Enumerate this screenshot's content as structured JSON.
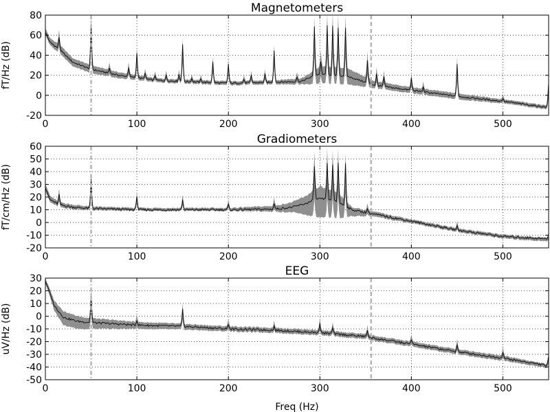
{
  "chart_data": [
    {
      "type": "line",
      "title": "Magnetometers",
      "ylabel": "fT/Hz (dB)",
      "xlabel": "",
      "xlim": [
        0,
        550
      ],
      "ylim": [
        -20,
        80
      ],
      "xticks": [
        0,
        100,
        200,
        300,
        400,
        500
      ],
      "yticks": [
        -20,
        0,
        20,
        40,
        60,
        80
      ],
      "grid": true,
      "vlines": [
        {
          "x": 50,
          "style": "dashdot"
        },
        {
          "x": 356,
          "style": "dashed"
        }
      ],
      "baseline": [
        [
          0,
          63
        ],
        [
          5,
          53
        ],
        [
          15,
          46
        ],
        [
          30,
          33
        ],
        [
          50,
          26
        ],
        [
          80,
          20
        ],
        [
          120,
          15
        ],
        [
          200,
          12
        ],
        [
          250,
          13
        ],
        [
          280,
          14
        ],
        [
          295,
          20
        ],
        [
          300,
          21
        ],
        [
          330,
          19
        ],
        [
          360,
          10
        ],
        [
          400,
          5
        ],
        [
          450,
          -1
        ],
        [
          500,
          -6
        ],
        [
          540,
          -11
        ],
        [
          550,
          -12
        ]
      ],
      "upper": [
        [
          0,
          67
        ],
        [
          5,
          57
        ],
        [
          15,
          51
        ],
        [
          30,
          37
        ],
        [
          50,
          30
        ],
        [
          80,
          23
        ],
        [
          120,
          17
        ],
        [
          200,
          14
        ],
        [
          250,
          15
        ],
        [
          280,
          17
        ],
        [
          295,
          25
        ],
        [
          300,
          29
        ],
        [
          330,
          27
        ],
        [
          360,
          14
        ],
        [
          400,
          8
        ],
        [
          450,
          2
        ],
        [
          500,
          -4
        ],
        [
          540,
          -9
        ],
        [
          550,
          -10
        ]
      ],
      "lower": [
        [
          0,
          60
        ],
        [
          5,
          50
        ],
        [
          15,
          42
        ],
        [
          30,
          29
        ],
        [
          50,
          22
        ],
        [
          80,
          17
        ],
        [
          120,
          13
        ],
        [
          200,
          10
        ],
        [
          250,
          11
        ],
        [
          280,
          11
        ],
        [
          295,
          11
        ],
        [
          300,
          12
        ],
        [
          330,
          11
        ],
        [
          360,
          7
        ],
        [
          400,
          2
        ],
        [
          450,
          -4
        ],
        [
          500,
          -8
        ],
        [
          540,
          -13
        ],
        [
          550,
          -14
        ]
      ],
      "peaks": [
        {
          "x": 15,
          "y": 58
        },
        {
          "x": 50,
          "y": 70
        },
        {
          "x": 70,
          "y": 27
        },
        {
          "x": 91,
          "y": 28
        },
        {
          "x": 100,
          "y": 42
        },
        {
          "x": 109,
          "y": 22
        },
        {
          "x": 120,
          "y": 20
        },
        {
          "x": 132,
          "y": 20
        },
        {
          "x": 146,
          "y": 21
        },
        {
          "x": 150,
          "y": 51
        },
        {
          "x": 160,
          "y": 17
        },
        {
          "x": 170,
          "y": 16
        },
        {
          "x": 183,
          "y": 33
        },
        {
          "x": 200,
          "y": 31
        },
        {
          "x": 217,
          "y": 16
        },
        {
          "x": 225,
          "y": 20
        },
        {
          "x": 240,
          "y": 21
        },
        {
          "x": 250,
          "y": 45
        },
        {
          "x": 275,
          "y": 18
        },
        {
          "x": 294,
          "y": 69
        },
        {
          "x": 301,
          "y": 33
        },
        {
          "x": 308,
          "y": 69
        },
        {
          "x": 314,
          "y": 69
        },
        {
          "x": 320,
          "y": 68
        },
        {
          "x": 328,
          "y": 67
        },
        {
          "x": 352,
          "y": 35
        },
        {
          "x": 362,
          "y": 21
        },
        {
          "x": 370,
          "y": 18
        },
        {
          "x": 400,
          "y": 17
        },
        {
          "x": 413,
          "y": 8
        },
        {
          "x": 450,
          "y": 31
        },
        {
          "x": 500,
          "y": -3
        },
        {
          "x": 550,
          "y": 12
        }
      ]
    },
    {
      "type": "line",
      "title": "Gradiometers",
      "ylabel": "fT/cm/Hz (dB)",
      "xlabel": "",
      "xlim": [
        0,
        550
      ],
      "ylim": [
        -20,
        60
      ],
      "xticks": [
        0,
        100,
        200,
        300,
        400,
        500
      ],
      "yticks": [
        -20,
        -10,
        0,
        10,
        20,
        30,
        40,
        50,
        60
      ],
      "grid": true,
      "vlines": [
        {
          "x": 50,
          "style": "dashdot"
        },
        {
          "x": 356,
          "style": "dashed"
        }
      ],
      "baseline": [
        [
          0,
          28
        ],
        [
          5,
          18
        ],
        [
          15,
          14
        ],
        [
          30,
          12
        ],
        [
          50,
          11
        ],
        [
          100,
          10
        ],
        [
          200,
          10
        ],
        [
          250,
          10.5
        ],
        [
          270,
          12
        ],
        [
          285,
          15
        ],
        [
          295,
          18
        ],
        [
          300,
          19
        ],
        [
          320,
          16
        ],
        [
          335,
          10
        ],
        [
          356,
          7
        ],
        [
          400,
          1
        ],
        [
          450,
          -6
        ],
        [
          500,
          -11
        ],
        [
          550,
          -13
        ]
      ],
      "upper": [
        [
          0,
          31
        ],
        [
          5,
          21
        ],
        [
          15,
          16
        ],
        [
          30,
          14
        ],
        [
          50,
          12.5
        ],
        [
          100,
          11.5
        ],
        [
          200,
          11.5
        ],
        [
          250,
          13
        ],
        [
          270,
          16
        ],
        [
          285,
          21
        ],
        [
          295,
          26
        ],
        [
          300,
          28
        ],
        [
          320,
          23
        ],
        [
          335,
          12
        ],
        [
          356,
          9
        ],
        [
          400,
          2.5
        ],
        [
          450,
          -4.5
        ],
        [
          500,
          -9.5
        ],
        [
          550,
          -12
        ]
      ],
      "lower": [
        [
          0,
          25
        ],
        [
          5,
          16
        ],
        [
          15,
          12
        ],
        [
          30,
          10.5
        ],
        [
          50,
          9.5
        ],
        [
          100,
          9
        ],
        [
          200,
          9
        ],
        [
          250,
          8.5
        ],
        [
          270,
          8
        ],
        [
          285,
          6
        ],
        [
          295,
          4
        ],
        [
          300,
          4
        ],
        [
          320,
          3
        ],
        [
          335,
          5
        ],
        [
          356,
          5
        ],
        [
          400,
          -0.5
        ],
        [
          450,
          -7.5
        ],
        [
          500,
          -12.5
        ],
        [
          550,
          -15
        ]
      ],
      "peaks": [
        {
          "x": 15,
          "y": 22
        },
        {
          "x": 50,
          "y": 34
        },
        {
          "x": 100,
          "y": 21
        },
        {
          "x": 150,
          "y": 18
        },
        {
          "x": 200,
          "y": 14
        },
        {
          "x": 250,
          "y": 15
        },
        {
          "x": 294,
          "y": 45
        },
        {
          "x": 301,
          "y": 18
        },
        {
          "x": 308,
          "y": 46
        },
        {
          "x": 314,
          "y": 46
        },
        {
          "x": 320,
          "y": 47
        },
        {
          "x": 328,
          "y": 47
        },
        {
          "x": 352,
          "y": 11
        },
        {
          "x": 450,
          "y": -3
        },
        {
          "x": 550,
          "y": -11
        }
      ]
    },
    {
      "type": "line",
      "title": "EEG",
      "ylabel": "uV/Hz (dB)",
      "xlabel": "Freq (Hz)",
      "xlim": [
        0,
        550
      ],
      "ylim": [
        -50,
        30
      ],
      "xticks": [
        0,
        100,
        200,
        300,
        400,
        500
      ],
      "yticks": [
        -50,
        -40,
        -30,
        -20,
        -10,
        0,
        10,
        20,
        30
      ],
      "grid": true,
      "vlines": [
        {
          "x": 50,
          "style": "dashdot"
        },
        {
          "x": 356,
          "style": "dashed"
        }
      ],
      "baseline": [
        [
          0,
          28
        ],
        [
          5,
          18
        ],
        [
          10,
          8
        ],
        [
          20,
          -1
        ],
        [
          35,
          -4
        ],
        [
          50,
          -5
        ],
        [
          100,
          -7
        ],
        [
          150,
          -8
        ],
        [
          200,
          -10
        ],
        [
          250,
          -11
        ],
        [
          300,
          -13
        ],
        [
          350,
          -16
        ],
        [
          356,
          -17
        ],
        [
          400,
          -22
        ],
        [
          450,
          -28
        ],
        [
          500,
          -33
        ],
        [
          525,
          -36
        ],
        [
          550,
          -39
        ]
      ],
      "upper": [
        [
          0,
          30
        ],
        [
          5,
          21
        ],
        [
          10,
          12
        ],
        [
          20,
          4
        ],
        [
          35,
          0
        ],
        [
          50,
          -1.5
        ],
        [
          100,
          -4.5
        ],
        [
          150,
          -6
        ],
        [
          200,
          -8
        ],
        [
          250,
          -9
        ],
        [
          300,
          -11
        ],
        [
          350,
          -14
        ],
        [
          356,
          -15
        ],
        [
          400,
          -20
        ],
        [
          450,
          -26
        ],
        [
          500,
          -31
        ],
        [
          525,
          -34.5
        ],
        [
          550,
          -38
        ]
      ],
      "lower": [
        [
          0,
          26
        ],
        [
          5,
          15
        ],
        [
          10,
          4
        ],
        [
          20,
          -7
        ],
        [
          35,
          -10
        ],
        [
          50,
          -10
        ],
        [
          100,
          -10
        ],
        [
          150,
          -10.5
        ],
        [
          200,
          -12
        ],
        [
          250,
          -13
        ],
        [
          300,
          -15
        ],
        [
          350,
          -18
        ],
        [
          356,
          -19
        ],
        [
          400,
          -24
        ],
        [
          450,
          -30
        ],
        [
          500,
          -35
        ],
        [
          525,
          -38
        ],
        [
          550,
          -41
        ]
      ],
      "peaks": [
        {
          "x": 50,
          "y": 16
        },
        {
          "x": 100,
          "y": -3
        },
        {
          "x": 150,
          "y": 5
        },
        {
          "x": 200,
          "y": -6
        },
        {
          "x": 250,
          "y": -8
        },
        {
          "x": 300,
          "y": -5
        },
        {
          "x": 314,
          "y": -9
        },
        {
          "x": 352,
          "y": -11
        },
        {
          "x": 400,
          "y": -18
        },
        {
          "x": 450,
          "y": -22
        },
        {
          "x": 500,
          "y": -28
        },
        {
          "x": 550,
          "y": -32
        }
      ]
    }
  ]
}
